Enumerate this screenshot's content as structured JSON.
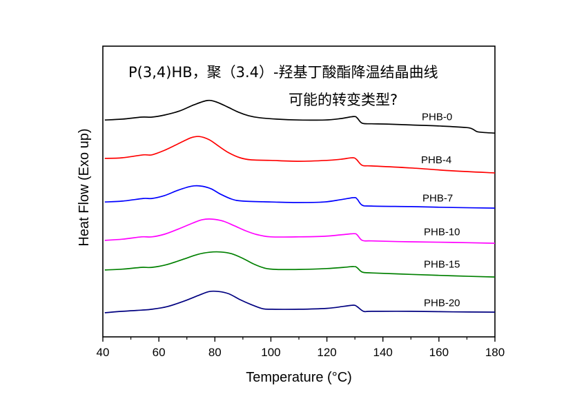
{
  "chart_data": {
    "type": "line",
    "title": "P(3,4)HB，聚（3.4）-羟基丁酸酯降温结晶曲线",
    "subtitle": "可能的转变类型?",
    "xlabel": "Temperature (°C)",
    "ylabel": "Heat Flow (Exo up)",
    "xlim": [
      40,
      180
    ],
    "ylim": [
      0,
      100
    ],
    "y_units": "arbitrary (stacked, no y tick labels)",
    "xticks": [
      40,
      60,
      80,
      100,
      120,
      140,
      160,
      180
    ],
    "xtick_labels": [
      "40",
      "60",
      "80",
      "100",
      "120",
      "140",
      "160",
      "180"
    ],
    "minor_xticks": [
      50,
      70,
      90,
      110,
      130,
      150,
      170
    ],
    "grid": false,
    "legend": "inline labels at right",
    "series": [
      {
        "name": "PHB-0",
        "color": "#000000",
        "points": [
          [
            40.7,
            74.6
          ],
          [
            47,
            74.9
          ],
          [
            53.8,
            75.6
          ],
          [
            57.5,
            75.6
          ],
          [
            62,
            76.3
          ],
          [
            67.4,
            77.7
          ],
          [
            72.5,
            79.8
          ],
          [
            77.3,
            81.3
          ],
          [
            80.5,
            80.8
          ],
          [
            84.5,
            79.1
          ],
          [
            88.4,
            77.3
          ],
          [
            92,
            76.1
          ],
          [
            95.8,
            75.4
          ],
          [
            102,
            74.9
          ],
          [
            110,
            74.6
          ],
          [
            119.3,
            74.6
          ],
          [
            125,
            75.1
          ],
          [
            129.6,
            75.8
          ],
          [
            130.8,
            75.3
          ],
          [
            132.6,
            73.5
          ],
          [
            136,
            73.3
          ],
          [
            141.5,
            73.2
          ],
          [
            150,
            72.9
          ],
          [
            161.2,
            72.5
          ],
          [
            169.9,
            72.0
          ],
          [
            172,
            71.5
          ],
          [
            173.6,
            70.6
          ],
          [
            176,
            70.3
          ],
          [
            180,
            70.1
          ]
        ]
      },
      {
        "name": "PHB-4",
        "color": "#ff0000",
        "points": [
          [
            40.7,
            61.4
          ],
          [
            47,
            61.6
          ],
          [
            54.4,
            62.6
          ],
          [
            57.5,
            62.6
          ],
          [
            62.3,
            64.3
          ],
          [
            67.5,
            66.7
          ],
          [
            71.5,
            68.5
          ],
          [
            74.5,
            68.9
          ],
          [
            78,
            67.8
          ],
          [
            81.5,
            65.5
          ],
          [
            85,
            63.3
          ],
          [
            89,
            61.6
          ],
          [
            92.9,
            60.9
          ],
          [
            100,
            60.7
          ],
          [
            110,
            60.4
          ],
          [
            120,
            60.7
          ],
          [
            125,
            61.1
          ],
          [
            129.1,
            61.6
          ],
          [
            130.5,
            61.1
          ],
          [
            132.6,
            59.0
          ],
          [
            136,
            58.8
          ],
          [
            150,
            58.1
          ],
          [
            165,
            57.1
          ],
          [
            180,
            56.4
          ]
        ]
      },
      {
        "name": "PHB-7",
        "color": "#0000ff",
        "points": [
          [
            40.7,
            46.4
          ],
          [
            47,
            46.7
          ],
          [
            54.4,
            47.6
          ],
          [
            57.5,
            47.6
          ],
          [
            62,
            48.6
          ],
          [
            67,
            50.5
          ],
          [
            71.5,
            51.8
          ],
          [
            74.8,
            51.9
          ],
          [
            78.5,
            51.0
          ],
          [
            82,
            49.1
          ],
          [
            86,
            47.4
          ],
          [
            90,
            46.7
          ],
          [
            100,
            46.4
          ],
          [
            110,
            46.2
          ],
          [
            119,
            46.4
          ],
          [
            125,
            47.2
          ],
          [
            129.6,
            47.9
          ],
          [
            130.8,
            47.4
          ],
          [
            132.6,
            45.3
          ],
          [
            136,
            45.0
          ],
          [
            150,
            44.8
          ],
          [
            165,
            44.5
          ],
          [
            180,
            44.3
          ]
        ]
      },
      {
        "name": "PHB-10",
        "color": "#ff00ff",
        "points": [
          [
            40.7,
            33.2
          ],
          [
            47,
            33.6
          ],
          [
            53.8,
            34.4
          ],
          [
            57.5,
            34.4
          ],
          [
            62,
            35.3
          ],
          [
            67,
            37.1
          ],
          [
            72,
            39.1
          ],
          [
            75.5,
            40.3
          ],
          [
            79.1,
            40.5
          ],
          [
            83,
            39.8
          ],
          [
            87,
            38.2
          ],
          [
            91,
            36.5
          ],
          [
            95,
            35.2
          ],
          [
            100,
            34.4
          ],
          [
            110,
            34.4
          ],
          [
            119,
            34.6
          ],
          [
            125,
            35.1
          ],
          [
            129.6,
            35.5
          ],
          [
            130.8,
            35.1
          ],
          [
            132.6,
            33.2
          ],
          [
            136,
            33.0
          ],
          [
            150,
            32.7
          ],
          [
            165,
            32.5
          ],
          [
            180,
            32.2
          ]
        ]
      },
      {
        "name": "PHB-15",
        "color": "#008000",
        "points": [
          [
            40.7,
            23.0
          ],
          [
            47,
            23.3
          ],
          [
            53.8,
            23.9
          ],
          [
            57.5,
            23.9
          ],
          [
            63,
            24.9
          ],
          [
            69,
            26.8
          ],
          [
            74,
            28.4
          ],
          [
            78,
            29.1
          ],
          [
            82.1,
            29.2
          ],
          [
            86,
            28.6
          ],
          [
            90,
            27.0
          ],
          [
            94,
            25.0
          ],
          [
            98,
            23.6
          ],
          [
            102,
            23.2
          ],
          [
            110,
            23.2
          ],
          [
            120,
            23.5
          ],
          [
            126,
            23.9
          ],
          [
            129.6,
            24.2
          ],
          [
            130.8,
            23.8
          ],
          [
            132.6,
            22.3
          ],
          [
            136,
            22.0
          ],
          [
            150,
            21.5
          ],
          [
            165,
            21.0
          ],
          [
            180,
            20.6
          ]
        ]
      },
      {
        "name": "PHB-20",
        "color": "#000080",
        "points": [
          [
            40.7,
            8.3
          ],
          [
            47,
            8.8
          ],
          [
            53.8,
            9.2
          ],
          [
            57.5,
            9.5
          ],
          [
            63,
            10.4
          ],
          [
            69,
            12.3
          ],
          [
            74,
            14.2
          ],
          [
            78,
            15.6
          ],
          [
            81.4,
            15.6
          ],
          [
            85,
            14.8
          ],
          [
            89,
            12.8
          ],
          [
            93,
            11.1
          ],
          [
            97,
            9.7
          ],
          [
            100.5,
            9.5
          ],
          [
            110,
            9.5
          ],
          [
            120,
            9.8
          ],
          [
            126,
            10.5
          ],
          [
            129.6,
            10.9
          ],
          [
            130.8,
            10.4
          ],
          [
            133.1,
            8.8
          ],
          [
            136,
            8.8
          ],
          [
            150,
            8.8
          ],
          [
            165,
            8.6
          ],
          [
            180,
            8.5
          ]
        ]
      }
    ]
  }
}
